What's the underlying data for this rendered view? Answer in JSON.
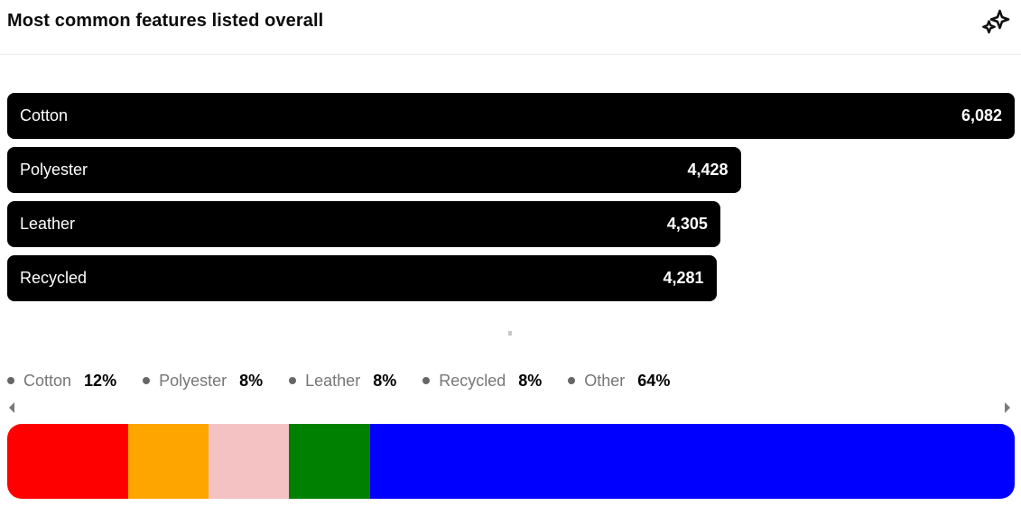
{
  "header": {
    "title": "Most common features listed overall",
    "sparkles_button_label": "sparkles"
  },
  "chart_data": [
    {
      "type": "bar",
      "orientation": "horizontal",
      "title": "Most common features listed overall",
      "categories": [
        "Cotton",
        "Polyester",
        "Leather",
        "Recycled"
      ],
      "values": [
        6082,
        4428,
        4305,
        4281
      ],
      "value_labels": [
        "6,082",
        "4,428",
        "4,305",
        "4,281"
      ],
      "xlim": [
        0,
        6082
      ],
      "bar_color": "#000000",
      "text_color": "#ffffff",
      "grid": false
    },
    {
      "type": "stacked-bar",
      "orientation": "horizontal",
      "legend_position": "top",
      "series": [
        {
          "name": "Cotton",
          "percent": 12,
          "percent_label": "12%",
          "color": "#ff0000"
        },
        {
          "name": "Polyester",
          "percent": 8,
          "percent_label": "8%",
          "color": "#ffa500"
        },
        {
          "name": "Leather",
          "percent": 8,
          "percent_label": "8%",
          "color": "#f5c2c4"
        },
        {
          "name": "Recycled",
          "percent": 8,
          "percent_label": "8%",
          "color": "#008000"
        },
        {
          "name": "Other",
          "percent": 64,
          "percent_label": "64%",
          "color": "#0000ff"
        }
      ],
      "legend_dot_color": "#666666",
      "legend_label_color": "#767676",
      "legend_value_color": "#000000"
    }
  ],
  "scrollbar": {
    "left_arrow": "scroll-left",
    "right_arrow": "scroll-right"
  }
}
